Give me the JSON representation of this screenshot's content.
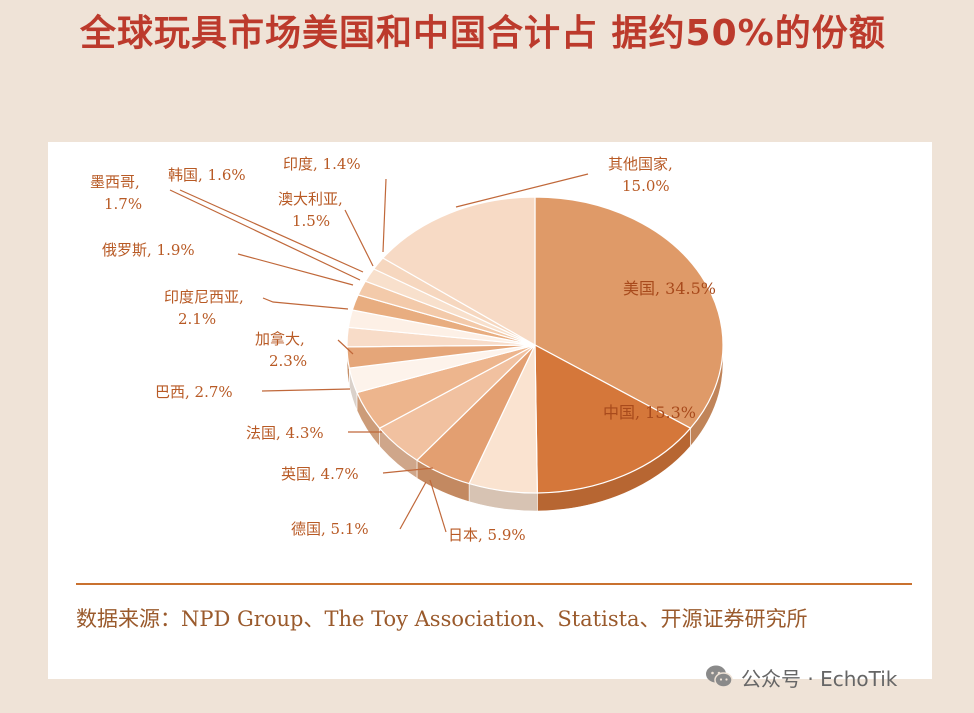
{
  "title": "全球玩具市场美国和中国合计占 据约50%的份额",
  "source": "数据来源：NPD Group、The Toy Association、Statista、开源证券研究所",
  "watermark": "公众号 · EchoTik",
  "chart_data": {
    "type": "pie",
    "unit": "%",
    "slices": [
      {
        "label": "美国",
        "value": 34.5,
        "text": "美国, 34.5%",
        "color": "#df9a68"
      },
      {
        "label": "中国",
        "value": 15.3,
        "text": "中国, 15.3%",
        "color": "#d5773a"
      },
      {
        "label": "日本",
        "value": 5.9,
        "text": "日本, 5.9%",
        "color": "#fae3d0"
      },
      {
        "label": "德国",
        "value": 5.1,
        "text": "德国, 5.1%",
        "color": "#e39f71"
      },
      {
        "label": "英国",
        "value": 4.7,
        "text": "英国, 4.7%",
        "color": "#f1c1a0"
      },
      {
        "label": "法国",
        "value": 4.3,
        "text": "法国, 4.3%",
        "color": "#edb58d"
      },
      {
        "label": "巴西",
        "value": 2.7,
        "text": "巴西, 2.7%",
        "color": "#fdf3eb"
      },
      {
        "label": "加拿大",
        "value": 2.3,
        "text": "加拿大, 2.3%",
        "color": "#e5a679"
      },
      {
        "label": "印度尼西亚",
        "value": 2.1,
        "text": "印度尼西亚, 2.1%",
        "color": "#f8dcc8"
      },
      {
        "label": "俄罗斯",
        "value": 1.9,
        "text": "俄罗斯, 1.9%",
        "color": "#fdf0e6"
      },
      {
        "label": "墨西哥",
        "value": 1.7,
        "text": "墨西哥, 1.7%",
        "color": "#e8ad80"
      },
      {
        "label": "韩国",
        "value": 1.6,
        "text": "韩国, 1.6%",
        "color": "#f3caaa"
      },
      {
        "label": "澳大利亚",
        "value": 1.5,
        "text": "澳大利亚, 1.5%",
        "color": "#f8e0cc"
      },
      {
        "label": "印度",
        "value": 1.4,
        "text": "印度, 1.4%",
        "color": "#f6d7bf"
      },
      {
        "label": "其他国家",
        "value": 15.0,
        "text": "其他国家, 15.0%",
        "color": "#f7dac5"
      }
    ]
  }
}
